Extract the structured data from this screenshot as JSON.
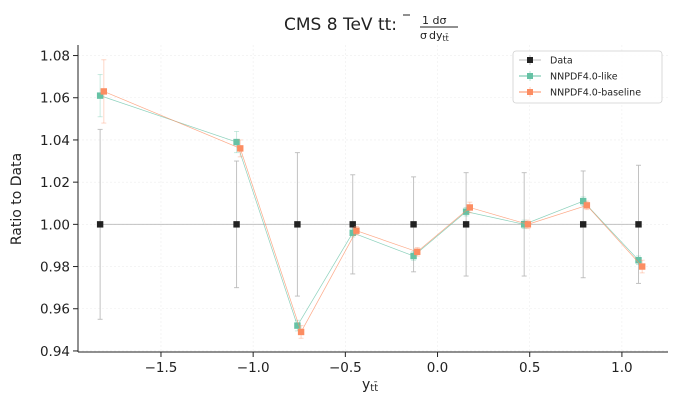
{
  "chart_data": {
    "type": "scatter",
    "title_main": "CMS 8 TeV t",
    "title_bar": "t",
    "title_colon": ":",
    "title_frac_num": "1 dσ",
    "title_frac_den_sigma": "σ",
    "title_frac_den_dy": "dy",
    "title_frac_den_sub": "tt̄",
    "xlabel": "y",
    "xlabel_sub": "tt̄",
    "ylabel": "Ratio to Data",
    "xlim": [
      -1.95,
      1.25
    ],
    "ylim": [
      0.9395,
      1.085
    ],
    "xticks": [
      -1.5,
      -1.0,
      -0.5,
      0.0,
      0.5,
      1.0
    ],
    "xtick_labels": [
      "−1.5",
      "−1.0",
      "−0.5",
      "0.0",
      "0.5",
      "1.0"
    ],
    "yticks": [
      0.94,
      0.96,
      0.98,
      1.0,
      1.02,
      1.04,
      1.06,
      1.08
    ],
    "ytick_labels": [
      "0.94",
      "0.96",
      "0.98",
      "1.00",
      "1.02",
      "1.04",
      "1.06",
      "1.08"
    ],
    "grid": true,
    "legend_position": "top-right",
    "series": [
      {
        "name": "Data",
        "color": "#222222",
        "line_color": "#bbbbbb",
        "x": [
          -1.83,
          -1.09,
          -0.76,
          -0.46,
          -0.13,
          0.155,
          0.47,
          0.79,
          1.09
        ],
        "y": [
          1.0,
          1.0,
          1.0,
          1.0,
          1.0,
          1.0,
          1.0,
          1.0,
          1.0
        ],
        "err": [
          0.045,
          0.03,
          0.034,
          0.0235,
          0.0225,
          0.0245,
          0.0245,
          0.0253,
          0.028
        ]
      },
      {
        "name": "NNPDF4.0-like",
        "color": "#66c2a5",
        "x": [
          -1.83,
          -1.09,
          -0.76,
          -0.46,
          -0.13,
          0.155,
          0.47,
          0.79,
          1.09
        ],
        "y": [
          1.061,
          1.039,
          0.952,
          0.996,
          0.985,
          1.006,
          1.0,
          1.011,
          0.983
        ],
        "err": [
          0.01,
          0.005,
          0.0025,
          0.002,
          0.002,
          0.002,
          0.002,
          0.002,
          0.002
        ]
      },
      {
        "name": "NNPDF4.0-baseline",
        "color": "#fc8d62",
        "x": [
          -1.81,
          -1.07,
          -0.74,
          -0.44,
          -0.11,
          0.175,
          0.49,
          0.81,
          1.11
        ],
        "y": [
          1.063,
          1.036,
          0.949,
          0.997,
          0.987,
          1.008,
          1.0,
          1.009,
          0.98
        ],
        "err": [
          0.015,
          0.004,
          0.003,
          0.002,
          0.002,
          0.0025,
          0.002,
          0.002,
          0.003
        ]
      }
    ]
  }
}
